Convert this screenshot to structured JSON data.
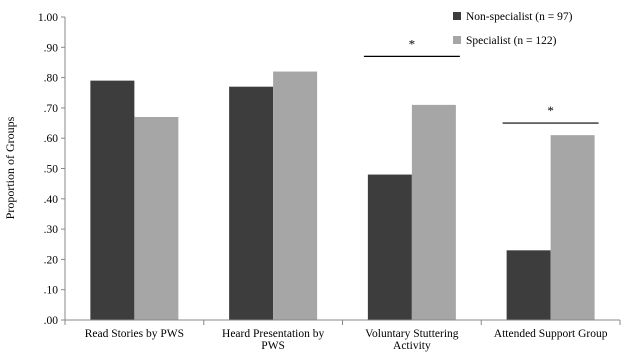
{
  "chart_data": {
    "type": "bar",
    "ylabel": "Proportion of Groups",
    "ylim": [
      0,
      1.0
    ],
    "yticks": [
      ".00",
      ".10",
      ".20",
      ".30",
      ".40",
      ".50",
      ".60",
      ".70",
      ".80",
      ".90",
      "1.00"
    ],
    "categories": [
      [
        "Read Stories by PWS"
      ],
      [
        "Heard Presentation by",
        "PWS"
      ],
      [
        "Voluntary Stuttering",
        "Activity"
      ],
      [
        "Attended Support Group"
      ]
    ],
    "series": [
      {
        "name": "Non-specialist (n = 97)",
        "color": "#3d3d3d",
        "values": [
          0.79,
          0.77,
          0.48,
          0.23
        ]
      },
      {
        "name": "Specialist (n = 122)",
        "color": "#a6a6a6",
        "values": [
          0.67,
          0.82,
          0.71,
          0.61
        ]
      }
    ],
    "significance": [
      {
        "category_index": 2,
        "label": "*",
        "y": 0.87
      },
      {
        "category_index": 3,
        "label": "*",
        "y": 0.65
      }
    ],
    "legend_position": "top-right",
    "grid": false
  }
}
